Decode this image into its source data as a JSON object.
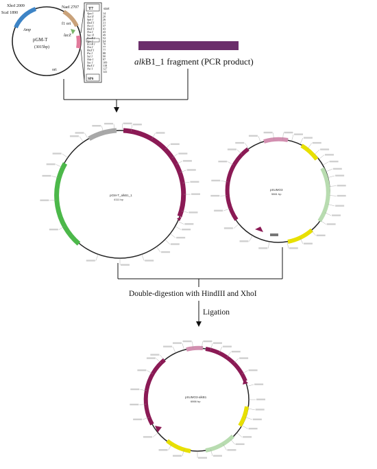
{
  "top_vector": {
    "name": "pGM-T",
    "size": "(3015bp)",
    "features": [
      "XhoI 2009",
      "ScaI 1890",
      "NaeI 2707",
      "f1 ori",
      "Amp",
      "lacZ",
      "ori"
    ],
    "mcs_header": "T7",
    "mcs_start": "start",
    "mcs_sites": [
      {
        "name": "Apa I",
        "pos": "14"
      },
      {
        "name": "Aat II",
        "pos": "20"
      },
      {
        "name": "Sph I",
        "pos": "26"
      },
      {
        "name": "BstZ I",
        "pos": "31"
      },
      {
        "name": "Nco I",
        "pos": "37"
      },
      {
        "name": "BstZ I",
        "pos": "43"
      },
      {
        "name": "Not I",
        "pos": "43"
      },
      {
        "name": "Sac II",
        "pos": "49"
      },
      {
        "name": "EcoR I",
        "pos": "52"
      },
      {
        "name": "Spe I",
        "pos": "64"
      },
      {
        "name": "EcoR I",
        "pos": "70"
      },
      {
        "name": "Not I",
        "pos": "77"
      },
      {
        "name": "BstZ I",
        "pos": "77"
      },
      {
        "name": "Pst I",
        "pos": "88"
      },
      {
        "name": "Sal I",
        "pos": "90"
      },
      {
        "name": "Nde I",
        "pos": "97"
      },
      {
        "name": "Sac I",
        "pos": "109"
      },
      {
        "name": "BstX I",
        "pos": "118"
      },
      {
        "name": "Nsi I",
        "pos": "127"
      },
      {
        "name": "",
        "pos": "141"
      }
    ],
    "mcs_footer": "SP6"
  },
  "fragment_label_italic": "alk",
  "fragment_label_rest": "B1_1 fragment (PCR product)",
  "left_plasmid": {
    "name": "pGM-T_alkB1_1",
    "size": "4111 bp"
  },
  "right_plasmid": {
    "name": "pSUMO3",
    "size": "5861 bp"
  },
  "step_digest": "Double-digestion with HindIII and XhoI",
  "step_ligation": "Ligation",
  "final_plasmid": {
    "name": "pSUMO3-alkB1",
    "size": "6866 bp"
  },
  "colors": {
    "fragment_bar": "#6b2e6b",
    "maroon": "#8b1a55",
    "green": "#4cb84a",
    "yellow": "#e8e000",
    "light_green": "#b8dcb0",
    "steel_blue": "#3d84c6",
    "tan": "#c9a27a",
    "gray": "#a8a8a8"
  }
}
